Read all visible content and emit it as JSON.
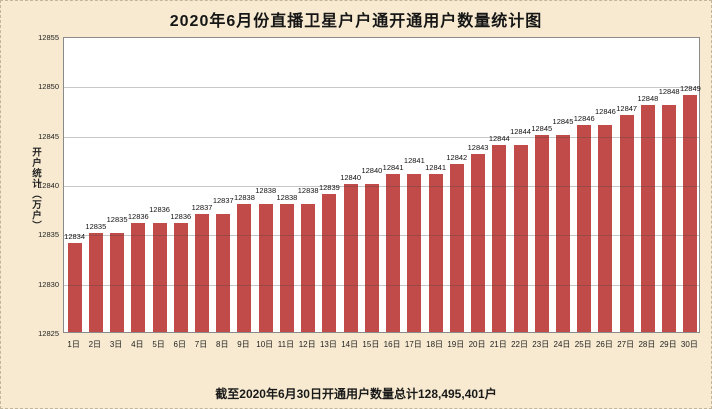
{
  "title": "2020年6月份直播卫星户户通开通用户数量统计图",
  "caption": "截至2020年6月30日开通用户数量总计128,495,401户",
  "colors": {
    "bar": "#c04b48",
    "background": "#f7ead0",
    "plot_background": "#ffffff",
    "gridline": "rgba(70,70,70,0.30)"
  },
  "chart_data": {
    "type": "bar",
    "title": "2020年6月份直播卫星户户通开通用户数量统计图",
    "xlabel": "",
    "ylabel": "开户统计（万户）",
    "categories": [
      "1日",
      "2日",
      "3日",
      "4日",
      "5日",
      "6日",
      "7日",
      "8日",
      "9日",
      "10日",
      "11日",
      "12日",
      "13日",
      "14日",
      "15日",
      "16日",
      "17日",
      "18日",
      "19日",
      "20日",
      "21日",
      "22日",
      "23日",
      "24日",
      "25日",
      "26日",
      "27日",
      "28日",
      "29日",
      "30日"
    ],
    "values": [
      12834,
      12835,
      12835,
      12836,
      12836,
      12836,
      12837,
      12837,
      12838,
      12838,
      12838,
      12838,
      12839,
      12840,
      12840,
      12841,
      12841,
      12841,
      12842,
      12843,
      12844,
      12844,
      12845,
      12845,
      12846,
      12846,
      12847,
      12848,
      12848,
      12849
    ],
    "ylim": [
      12825,
      12855
    ],
    "yticks": [
      12855,
      12850,
      12845,
      12840,
      12835,
      12830,
      12825
    ],
    "grid": true,
    "gridlines_over_bars": true,
    "legend": false,
    "data_labels": true,
    "annotation": "截至2020年6月30日开通用户数量总计128,495,401户"
  }
}
